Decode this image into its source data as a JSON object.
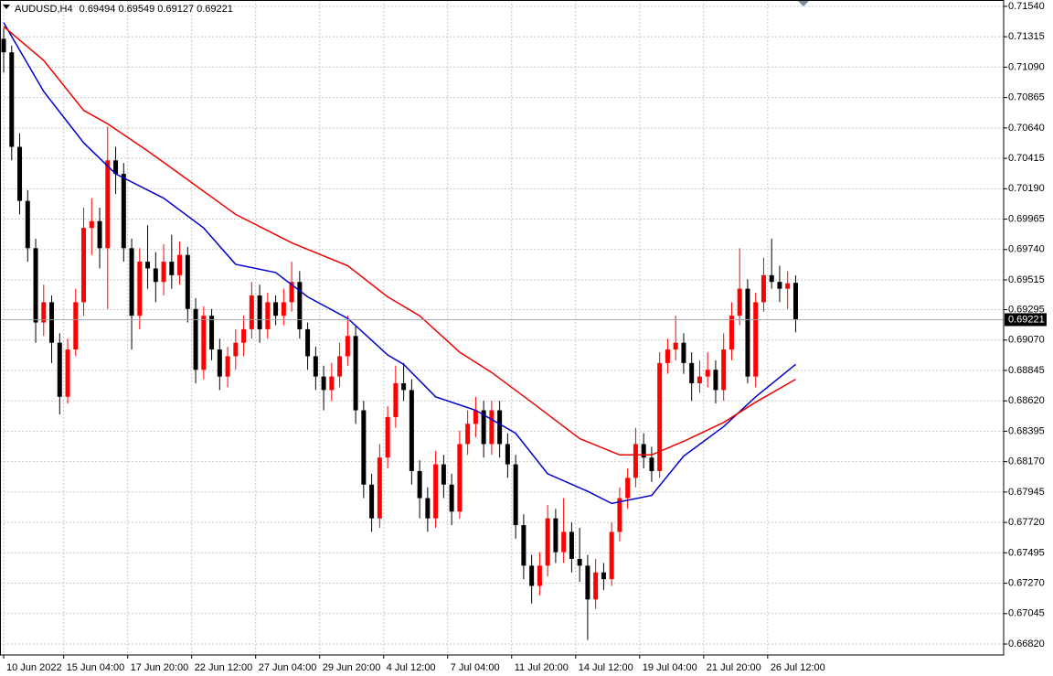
{
  "chart_data": {
    "type": "candlestick",
    "symbol": "AUDUSD,H4",
    "up_color": "#ff0000",
    "down_color": "#000000",
    "grid": true,
    "xlim": [
      -0.46,
      125
    ],
    "ylim": [
      0.66739,
      0.71587
    ],
    "yticks": [
      {
        "value": 0.7154,
        "label": "0.71540"
      },
      0.71315,
      {
        "value": 0.7109,
        "label": "0.71090"
      },
      0.70865,
      {
        "value": 0.7064,
        "label": "0.70640"
      },
      0.70415,
      {
        "value": 0.7019,
        "label": "0.70190"
      },
      0.69965,
      {
        "value": 0.6974,
        "label": "0.69740"
      },
      0.69515,
      0.69295,
      {
        "value": 0.6907,
        "label": "0.69070"
      },
      0.68845,
      {
        "value": 0.6862,
        "label": "0.68620"
      },
      0.68395,
      {
        "value": 0.6817,
        "label": "0.68170"
      },
      0.67945,
      {
        "value": 0.6772,
        "label": "0.67720"
      },
      0.67495,
      {
        "value": 0.6727,
        "label": "0.67270"
      },
      0.67045,
      {
        "value": 0.6682,
        "label": "0.66820"
      }
    ],
    "xticks": [
      {
        "value": 0,
        "label": "10 Jun 2022"
      },
      {
        "value": 7.5,
        "label": "15 Jun 04:00"
      },
      {
        "value": 15.5,
        "label": "17 Jun 20:00"
      },
      {
        "value": 23.5,
        "label": "22 Jun 12:00"
      },
      {
        "value": 31.5,
        "label": "27 Jun 04:00"
      },
      {
        "value": 39.5,
        "label": "29 Jun 20:00"
      },
      {
        "value": 47.5,
        "label": "4 Jul 12:00"
      },
      {
        "value": 55.5,
        "label": "7 Jul 04:00"
      },
      {
        "value": 63.5,
        "label": "11 Jul 20:00"
      },
      {
        "value": 71.5,
        "label": "14 Jul 12:00"
      },
      {
        "value": 79.5,
        "label": "19 Jul 04:00"
      },
      {
        "value": 87.5,
        "label": "21 Jul 20:00"
      },
      {
        "value": 95.5,
        "label": "26 Jul 12:00"
      }
    ],
    "ohlc": [
      [
        0.713,
        0.7138,
        0.7105,
        0.712
      ],
      [
        0.712,
        0.7125,
        0.704,
        0.705
      ],
      [
        0.705,
        0.706,
        0.7,
        0.701
      ],
      [
        0.701,
        0.7018,
        0.6965,
        0.6975
      ],
      [
        0.6975,
        0.6982,
        0.6905,
        0.692
      ],
      [
        0.692,
        0.6948,
        0.691,
        0.6935
      ],
      [
        0.6935,
        0.694,
        0.689,
        0.6905
      ],
      [
        0.6905,
        0.6912,
        0.6852,
        0.6865
      ],
      [
        0.6865,
        0.6908,
        0.686,
        0.69
      ],
      [
        0.69,
        0.6945,
        0.6895,
        0.6935
      ],
      [
        0.6935,
        0.7005,
        0.6925,
        0.699
      ],
      [
        0.699,
        0.7012,
        0.697,
        0.6995
      ],
      [
        0.6995,
        0.7005,
        0.696,
        0.6975
      ],
      [
        0.6975,
        0.7065,
        0.693,
        0.704
      ],
      [
        0.704,
        0.705,
        0.7015,
        0.703
      ],
      [
        0.703,
        0.7038,
        0.6965,
        0.6975
      ],
      [
        0.6975,
        0.6982,
        0.69,
        0.6925
      ],
      [
        0.6925,
        0.6975,
        0.6915,
        0.6965
      ],
      [
        0.6965,
        0.6992,
        0.6945,
        0.696
      ],
      [
        0.696,
        0.6972,
        0.6935,
        0.695
      ],
      [
        0.695,
        0.6978,
        0.694,
        0.6965
      ],
      [
        0.6965,
        0.6985,
        0.6945,
        0.6955
      ],
      [
        0.6955,
        0.698,
        0.6948,
        0.697
      ],
      [
        0.697,
        0.6976,
        0.692,
        0.693
      ],
      [
        0.693,
        0.6938,
        0.6875,
        0.6885
      ],
      [
        0.6885,
        0.6932,
        0.6878,
        0.6925
      ],
      [
        0.6925,
        0.693,
        0.6892,
        0.69
      ],
      [
        0.69,
        0.6908,
        0.687,
        0.688
      ],
      [
        0.688,
        0.6902,
        0.6872,
        0.6895
      ],
      [
        0.6895,
        0.6915,
        0.6885,
        0.6905
      ],
      [
        0.6905,
        0.6925,
        0.6895,
        0.6915
      ],
      [
        0.6915,
        0.695,
        0.6908,
        0.694
      ],
      [
        0.694,
        0.6948,
        0.6905,
        0.6915
      ],
      [
        0.6915,
        0.6942,
        0.6908,
        0.6935
      ],
      [
        0.6935,
        0.694,
        0.6918,
        0.6925
      ],
      [
        0.6925,
        0.6945,
        0.6918,
        0.6935
      ],
      [
        0.6935,
        0.6965,
        0.6928,
        0.695
      ],
      [
        0.695,
        0.6958,
        0.6908,
        0.6915
      ],
      [
        0.6915,
        0.692,
        0.6885,
        0.6895
      ],
      [
        0.6895,
        0.6902,
        0.687,
        0.688
      ],
      [
        0.688,
        0.6888,
        0.6855,
        0.687
      ],
      [
        0.687,
        0.689,
        0.6862,
        0.688
      ],
      [
        0.688,
        0.6905,
        0.6872,
        0.6895
      ],
      [
        0.6895,
        0.6925,
        0.6888,
        0.691
      ],
      [
        0.691,
        0.6918,
        0.6845,
        0.6855
      ],
      [
        0.6855,
        0.6862,
        0.679,
        0.68
      ],
      [
        0.68,
        0.6808,
        0.6765,
        0.6775
      ],
      [
        0.6775,
        0.683,
        0.6768,
        0.682
      ],
      [
        0.682,
        0.6858,
        0.6812,
        0.685
      ],
      [
        0.685,
        0.6888,
        0.6842,
        0.6875
      ],
      [
        0.6875,
        0.689,
        0.6862,
        0.687
      ],
      [
        0.687,
        0.6878,
        0.68,
        0.681
      ],
      [
        0.681,
        0.6818,
        0.6775,
        0.679
      ],
      [
        0.679,
        0.6798,
        0.6765,
        0.6775
      ],
      [
        0.6775,
        0.6825,
        0.6768,
        0.6815
      ],
      [
        0.6815,
        0.6822,
        0.679,
        0.68
      ],
      [
        0.68,
        0.6808,
        0.677,
        0.678
      ],
      [
        0.678,
        0.684,
        0.6775,
        0.683
      ],
      [
        0.683,
        0.6855,
        0.6822,
        0.6845
      ],
      [
        0.6845,
        0.6865,
        0.6835,
        0.6855
      ],
      [
        0.6855,
        0.6862,
        0.682,
        0.683
      ],
      [
        0.683,
        0.6862,
        0.6822,
        0.6855
      ],
      [
        0.6855,
        0.6862,
        0.682,
        0.683
      ],
      [
        0.683,
        0.6838,
        0.6805,
        0.6815
      ],
      [
        0.6815,
        0.6822,
        0.676,
        0.677
      ],
      [
        0.677,
        0.6778,
        0.673,
        0.674
      ],
      [
        0.674,
        0.6748,
        0.6712,
        0.6725
      ],
      [
        0.6725,
        0.675,
        0.6718,
        0.674
      ],
      [
        0.674,
        0.6785,
        0.6732,
        0.6775
      ],
      [
        0.6775,
        0.6782,
        0.6742,
        0.675
      ],
      [
        0.675,
        0.679,
        0.6742,
        0.6765
      ],
      [
        0.6765,
        0.6772,
        0.6735,
        0.6745
      ],
      [
        0.6745,
        0.6768,
        0.6728,
        0.674
      ],
      [
        0.674,
        0.6748,
        0.6685,
        0.6715
      ],
      [
        0.6715,
        0.6745,
        0.6708,
        0.6735
      ],
      [
        0.6735,
        0.6742,
        0.6722,
        0.673
      ],
      [
        0.673,
        0.6772,
        0.6725,
        0.6765
      ],
      [
        0.6765,
        0.6798,
        0.6758,
        0.679
      ],
      [
        0.679,
        0.6812,
        0.6782,
        0.6805
      ],
      [
        0.6805,
        0.6842,
        0.6798,
        0.683
      ],
      [
        0.683,
        0.6838,
        0.6812,
        0.682
      ],
      [
        0.682,
        0.6828,
        0.6802,
        0.681
      ],
      [
        0.681,
        0.6898,
        0.6805,
        0.689
      ],
      [
        0.689,
        0.6908,
        0.6882,
        0.69
      ],
      [
        0.69,
        0.6925,
        0.6892,
        0.6905
      ],
      [
        0.6905,
        0.6912,
        0.6882,
        0.689
      ],
      [
        0.689,
        0.6898,
        0.6862,
        0.6875
      ],
      [
        0.6875,
        0.6892,
        0.6868,
        0.688
      ],
      [
        0.688,
        0.6898,
        0.6872,
        0.6885
      ],
      [
        0.6885,
        0.6892,
        0.686,
        0.687
      ],
      [
        0.687,
        0.6912,
        0.6862,
        0.69
      ],
      [
        0.69,
        0.6935,
        0.6892,
        0.6925
      ],
      [
        0.6925,
        0.6975,
        0.6918,
        0.6945
      ],
      [
        0.6945,
        0.6952,
        0.6875,
        0.688
      ],
      [
        0.688,
        0.6942,
        0.6872,
        0.6935
      ],
      [
        0.6935,
        0.6968,
        0.6928,
        0.6955
      ],
      [
        0.6955,
        0.6982,
        0.6945,
        0.695
      ],
      [
        0.695,
        0.6962,
        0.6935,
        0.6945
      ],
      [
        0.6945,
        0.6958,
        0.693,
        0.6949
      ],
      [
        0.69494,
        0.69549,
        0.69127,
        0.69221
      ]
    ],
    "series": [
      {
        "color": "#0000cc",
        "x": [
          0,
          5,
          10,
          14,
          20,
          25,
          29,
          34,
          38,
          43,
          48,
          50,
          54,
          59,
          64,
          68,
          73,
          76,
          81,
          85,
          90,
          94,
          99
        ],
        "values": [
          0.7142,
          0.7091,
          0.7053,
          0.703,
          0.7012,
          0.699,
          0.6963,
          0.6957,
          0.6939,
          0.6923,
          0.6896,
          0.6889,
          0.6865,
          0.6855,
          0.6838,
          0.6808,
          0.6795,
          0.6786,
          0.6792,
          0.6821,
          0.6843,
          0.6865,
          0.6889
        ]
      },
      {
        "color": "#ee0000",
        "x": [
          0,
          5,
          10,
          13,
          18,
          22,
          29,
          36,
          43,
          48,
          52,
          57,
          61,
          66,
          72,
          77,
          81,
          85,
          90,
          94,
          99
        ],
        "values": [
          0.7139,
          0.7114,
          0.7077,
          0.7067,
          0.7047,
          0.703,
          0.7,
          0.6979,
          0.6962,
          0.6939,
          0.6925,
          0.6898,
          0.6883,
          0.6861,
          0.6834,
          0.6822,
          0.6822,
          0.6832,
          0.6846,
          0.6861,
          0.6878
        ]
      }
    ]
  }
}
